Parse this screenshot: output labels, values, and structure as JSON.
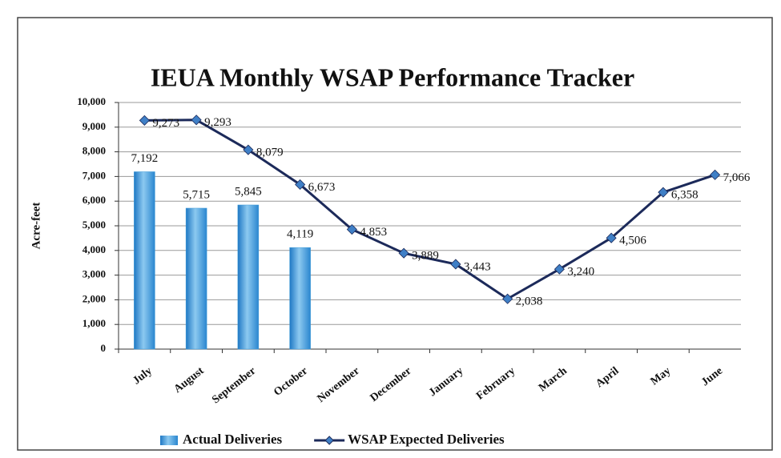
{
  "chart_data": {
    "type": "combo",
    "title": "IEUA Monthly WSAP Performance Tracker",
    "y_label": "Acre-feet",
    "categories": [
      "July",
      "August",
      "September",
      "October",
      "November",
      "December",
      "January",
      "February",
      "March",
      "April",
      "May",
      "June"
    ],
    "series": [
      {
        "name": "Actual Deliveries",
        "type": "bar",
        "color": "#3c9ad8",
        "values": [
          7192,
          5715,
          5845,
          4119,
          null,
          null,
          null,
          null,
          null,
          null,
          null,
          null
        ],
        "value_labels": [
          "7,192",
          "5,715",
          "5,845",
          "4,119",
          null,
          null,
          null,
          null,
          null,
          null,
          null,
          null
        ]
      },
      {
        "name": "WSAP Expected Deliveries",
        "type": "line",
        "color": "#1c2a5a",
        "marker_color": "#3f7fc6",
        "values": [
          9273,
          9293,
          8079,
          6673,
          4853,
          3889,
          3443,
          2038,
          3240,
          4506,
          6358,
          7066
        ],
        "value_labels": [
          "9,273",
          "9,293",
          "8,079",
          "6,673",
          "4,853",
          "3,889",
          "3,443",
          "2,038",
          "3,240",
          "4,506",
          "6,358",
          "7,066"
        ]
      }
    ],
    "ylim": [
      0,
      10000
    ],
    "yticks": [
      0,
      {
        "value": 1000,
        "label": "1,000"
      },
      {
        "value": 2000,
        "label": "2,000"
      },
      {
        "value": 3000,
        "label": "3,000"
      },
      {
        "value": 4000,
        "label": "4,000"
      },
      {
        "value": 5000,
        "label": "5,000"
      },
      {
        "value": 6000,
        "label": "6,000"
      },
      {
        "value": 7000,
        "label": "7,000"
      },
      {
        "value": 8000,
        "label": "8,000"
      },
      {
        "value": 9000,
        "label": "9,000"
      },
      {
        "value": 10000,
        "label": "10,000"
      }
    ],
    "grid": true,
    "legend": "bottom"
  }
}
